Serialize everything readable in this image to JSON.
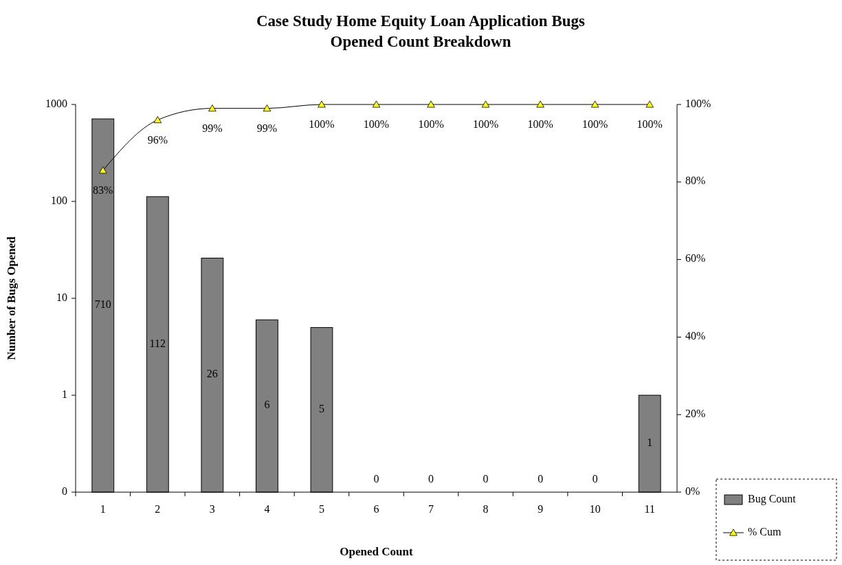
{
  "chart_data": {
    "type": "bar",
    "title": "Case Study Home Equity Loan Application Bugs\nOpened Count Breakdown",
    "xlabel": "Opened Count",
    "ylabel": "Number of Bugs Opened",
    "categories": [
      "1",
      "2",
      "3",
      "4",
      "5",
      "6",
      "7",
      "8",
      "9",
      "10",
      "11"
    ],
    "series": [
      {
        "name": "Bug Count",
        "color": "#808080",
        "values": [
          710,
          112,
          26,
          6,
          5,
          null,
          null,
          null,
          null,
          null,
          1
        ],
        "value_labels": [
          "710",
          "112",
          "26",
          "6",
          "5",
          "0",
          "0",
          "0",
          "0",
          "0",
          "1"
        ]
      },
      {
        "name": "% Cum",
        "type": "line",
        "axis": "y2",
        "color": "#000000",
        "marker": "triangle",
        "values": [
          83,
          96,
          99,
          99,
          100,
          100,
          100,
          100,
          100,
          100,
          100
        ],
        "value_labels": [
          "83%",
          "96%",
          "99%",
          "99%",
          "100%",
          "100%",
          "100%",
          "100%",
          "100%",
          "100%",
          "100%"
        ]
      }
    ],
    "log": "y",
    "ylim": [
      0.1,
      1000
    ],
    "yticks": [
      {
        "value": 0.1,
        "label": "0"
      },
      1,
      10,
      100,
      1000
    ],
    "y2lim": [
      0,
      100
    ],
    "y2ticks": [
      {
        "value": 0,
        "label": "0%"
      },
      {
        "value": 20,
        "label": "20%"
      },
      {
        "value": 40,
        "label": "40%"
      },
      {
        "value": 60,
        "label": "60%"
      },
      {
        "value": 80,
        "label": "80%"
      },
      {
        "value": 100,
        "label": "100%"
      }
    ],
    "grid": false,
    "legend": "bottom right"
  }
}
